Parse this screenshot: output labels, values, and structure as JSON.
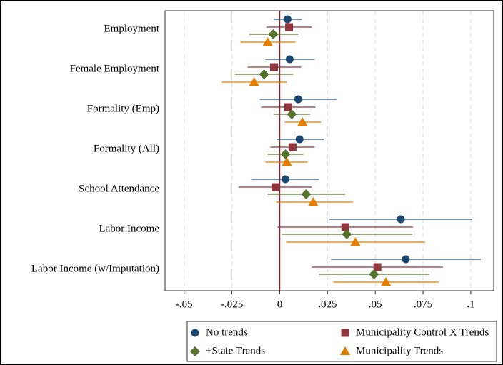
{
  "chart_data": {
    "type": "coefplot",
    "categories": [
      "Employment",
      "Female Employment",
      "Formality (Emp)",
      "Formality (All)",
      "School Attendance",
      "Labor Income",
      "Labor Income (w/Imputation)"
    ],
    "xlim": [
      -0.06,
      0.112
    ],
    "xticks": [
      {
        "value": -0.05,
        "label": "-.05"
      },
      {
        "value": -0.025,
        "label": "-.025"
      },
      0,
      {
        "value": 0.025,
        "label": ".025"
      },
      {
        "value": 0.05,
        "label": ".05"
      },
      {
        "value": 0.075,
        "label": ".075"
      },
      {
        "value": 0.1,
        "label": ".1"
      }
    ],
    "grid": true,
    "reference_line": 0,
    "reference_color": "#8b1c2c",
    "series": [
      {
        "name": "No trends",
        "color": "#1a476f",
        "marker": "circle",
        "values": [
          0.0041,
          0.0052,
          0.0097,
          0.0104,
          0.003,
          0.0634,
          0.066
        ],
        "lower": [
          -0.003,
          -0.0075,
          -0.0104,
          -0.0015,
          -0.0146,
          0.0261,
          0.0269
        ],
        "upper": [
          0.0116,
          0.0183,
          0.0299,
          0.0231,
          0.0205,
          0.1007,
          0.1052
        ]
      },
      {
        "name": "Municipality Control X Trends",
        "color": "#90353b",
        "marker": "square",
        "values": [
          0.0049,
          -0.003,
          0.0045,
          0.0067,
          -0.0022,
          0.0343,
          0.0511
        ],
        "lower": [
          -0.007,
          -0.0168,
          -0.0097,
          -0.0049,
          -0.0216,
          -0.0011,
          0.0168
        ],
        "upper": [
          0.0168,
          0.0112,
          0.0187,
          0.0183,
          0.0168,
          0.0698,
          0.0854
        ]
      },
      {
        "name": "+State Trends",
        "color": "#55752f",
        "marker": "diamond",
        "values": [
          -0.0034,
          -0.0082,
          0.0063,
          0.003,
          0.0138,
          0.0351,
          0.0493
        ],
        "lower": [
          -0.016,
          -0.0235,
          -0.003,
          -0.0063,
          -0.0063,
          0.0011,
          0.0205
        ],
        "upper": [
          0.0097,
          0.0071,
          0.016,
          0.0123,
          0.0343,
          0.0694,
          0.0784
        ]
      },
      {
        "name": "Municipality Trends",
        "color": "#e37e00",
        "marker": "triangle",
        "values": [
          -0.0063,
          -0.0134,
          0.0119,
          0.0037,
          0.0175,
          0.0396,
          0.0556
        ],
        "lower": [
          -0.0205,
          -0.0302,
          0.0026,
          -0.0075,
          -0.0019,
          0.0034,
          0.028
        ],
        "upper": [
          0.0082,
          0.0037,
          0.0216,
          0.0146,
          0.0384,
          0.0761,
          0.0832
        ]
      }
    ]
  }
}
